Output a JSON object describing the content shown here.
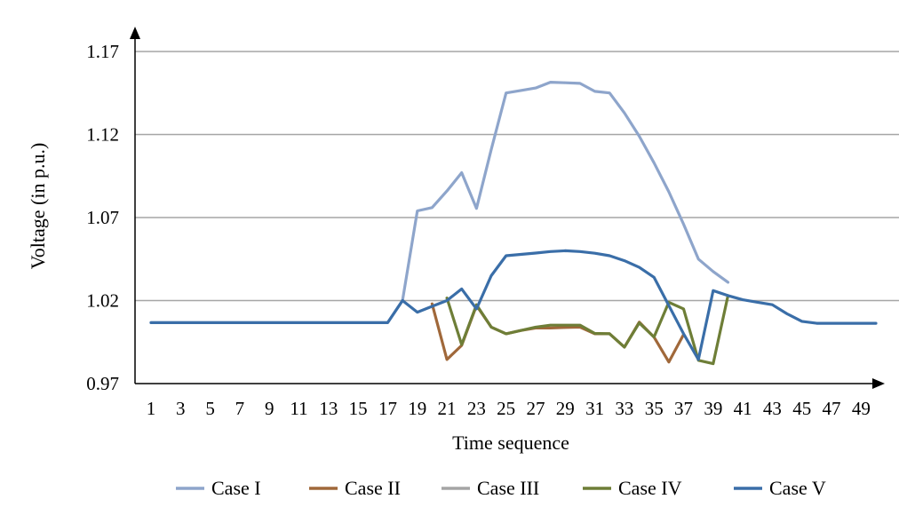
{
  "chart_data": {
    "type": "line",
    "title": "",
    "xlabel": "Time sequence",
    "ylabel": "Voltage (in p.u.)",
    "ylim": [
      0.97,
      1.17
    ],
    "yticks": [
      0.97,
      1.02,
      1.07,
      1.12,
      1.17
    ],
    "ytick_labels": [
      "0.97",
      "1.02",
      "1.07",
      "1.12",
      "1.17"
    ],
    "xlim": [
      1,
      50
    ],
    "xticks": [
      1,
      3,
      5,
      7,
      9,
      11,
      13,
      15,
      17,
      19,
      21,
      23,
      25,
      27,
      29,
      31,
      33,
      35,
      37,
      39,
      41,
      43,
      45,
      47,
      49
    ],
    "xtick_labels": [
      "1",
      "3",
      "5",
      "7",
      "9",
      "11",
      "13",
      "15",
      "17",
      "19",
      "21",
      "23",
      "25",
      "27",
      "29",
      "31",
      "33",
      "35",
      "37",
      "39",
      "41",
      "43",
      "45",
      "47",
      "49"
    ],
    "grid": "horizontal",
    "legend_position": "bottom",
    "series": [
      {
        "name": "Case I",
        "color": "#8EA5CB",
        "x": [
          1,
          17,
          18,
          19,
          20,
          21,
          22,
          23,
          24,
          25,
          26,
          27,
          28,
          29,
          30,
          31,
          32,
          33,
          34,
          35,
          36,
          37,
          38,
          39,
          40
        ],
        "y": [
          1.0067,
          1.0067,
          1.02,
          1.074,
          1.076,
          1.086,
          1.097,
          1.0755,
          1.111,
          1.145,
          1.1465,
          1.148,
          1.1515,
          1.1512,
          1.1508,
          1.146,
          1.145,
          1.133,
          1.119,
          1.103,
          1.0855,
          1.066,
          1.045,
          1.0375,
          1.031
        ]
      },
      {
        "name": "Case II",
        "color": "#A0683A",
        "x": [
          20,
          21,
          22,
          23,
          24,
          25,
          26,
          27,
          28,
          29,
          30,
          31,
          32,
          33,
          34,
          35,
          36,
          37
        ],
        "y": [
          1.018,
          0.9845,
          0.993,
          1.017,
          1.004,
          1.0,
          1.002,
          1.0035,
          1.0035,
          1.0038,
          1.004,
          1.0,
          1.0,
          0.992,
          1.007,
          0.998,
          0.983,
          0.9995
        ]
      },
      {
        "name": "Case III",
        "color": "#A5A5A5",
        "x": [],
        "y": []
      },
      {
        "name": "Case IV",
        "color": "#6E7E37",
        "x": [
          21,
          22,
          23,
          24,
          25,
          26,
          27,
          28,
          29,
          30,
          31,
          32,
          33,
          34,
          35,
          36,
          37,
          38,
          39,
          40
        ],
        "y": [
          1.0215,
          0.9935,
          1.0175,
          1.004,
          1.0,
          1.002,
          1.004,
          1.0052,
          1.0052,
          1.0052,
          1.0002,
          1.0,
          0.992,
          1.0065,
          0.998,
          1.019,
          1.015,
          0.984,
          0.982,
          1.023
        ]
      },
      {
        "name": "Case V",
        "color": "#3A6EA8",
        "x": [
          1,
          17,
          18,
          19,
          20,
          21,
          22,
          23,
          24,
          25,
          26,
          27,
          28,
          29,
          30,
          31,
          32,
          33,
          34,
          35,
          36,
          37,
          38,
          39,
          40,
          41,
          42,
          43,
          44,
          45,
          46,
          47,
          48,
          49,
          50
        ],
        "y": [
          1.0067,
          1.0067,
          1.02,
          1.013,
          1.0165,
          1.02,
          1.027,
          1.015,
          1.035,
          1.047,
          1.0478,
          1.0486,
          1.0495,
          1.05,
          1.0495,
          1.0485,
          1.047,
          1.044,
          1.04,
          1.034,
          1.017,
          1.0,
          0.9845,
          1.026,
          1.023,
          1.0205,
          1.019,
          1.0175,
          1.012,
          1.0075,
          1.0063,
          1.0063,
          1.0063,
          1.0063,
          1.0063
        ]
      }
    ]
  }
}
